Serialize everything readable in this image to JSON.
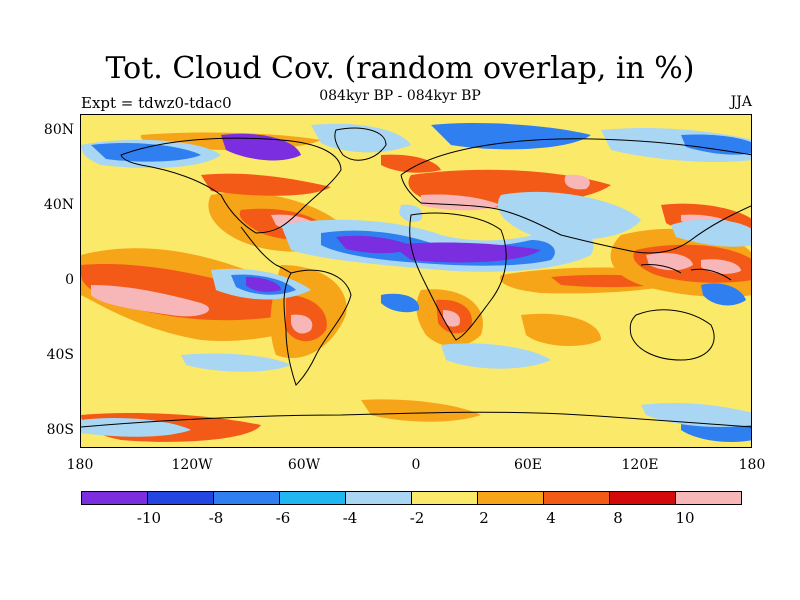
{
  "title": "Tot. Cloud Cov. (random overlap, in %)",
  "subtitle": "084kyr BP - 084kyr BP",
  "left_label": "Expt = tdwz0-tdac0",
  "right_label": "JJA",
  "map": {
    "projection": "cylindrical equidistant",
    "lat_ticks": [
      "80N",
      "40N",
      "0",
      "40S",
      "80S"
    ],
    "lon_ticks": [
      "180",
      "120W",
      "60W",
      "0",
      "60E",
      "120E",
      "180"
    ],
    "background_color": "#fbe96a",
    "coastline_color": "#000000"
  },
  "legend": {
    "colors": [
      "#7a2ee0",
      "#2346e0",
      "#2f7ff0",
      "#1fb6f2",
      "#a9d6f2",
      "#fbe96a",
      "#f6a418",
      "#f45a17",
      "#d40a0a",
      "#f7b6b8"
    ],
    "labels": [
      "-10",
      "-8",
      "-6",
      "-4",
      "-2",
      "2",
      "4",
      "8",
      "10"
    ]
  }
}
